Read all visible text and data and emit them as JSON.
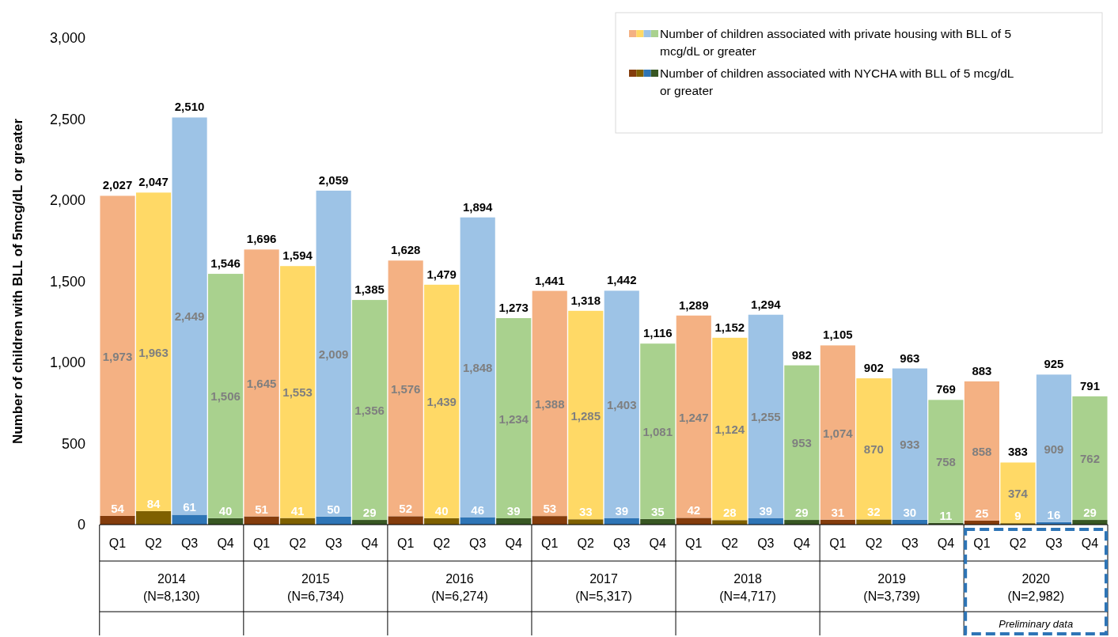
{
  "chart_data": {
    "type": "bar",
    "stacked": true,
    "ylabel": "Number of children with BLL of 5mcg/dL or greater",
    "categories": [
      "Q1",
      "Q2",
      "Q3",
      "Q4",
      "Q1",
      "Q2",
      "Q3",
      "Q4",
      "Q1",
      "Q2",
      "Q3",
      "Q4",
      "Q1",
      "Q2",
      "Q3",
      "Q4",
      "Q1",
      "Q2",
      "Q3",
      "Q4",
      "Q1",
      "Q2",
      "Q3",
      "Q4",
      "Q1",
      "Q2",
      "Q3",
      "Q4"
    ],
    "series": [
      {
        "name": "Number of children associated with NYCHA with BLL of 5 mcg/dL or greater",
        "value_labels": [
          "54",
          "84",
          "61",
          "40",
          "51",
          "41",
          "50",
          "29",
          "52",
          "40",
          "46",
          "39",
          "53",
          "33",
          "39",
          "35",
          "42",
          "28",
          "39",
          "29",
          "31",
          "32",
          "30",
          "11",
          "25",
          "9",
          "16",
          "29"
        ],
        "colors": [
          "#843c0c",
          "#7f6000",
          "#2e75b6",
          "#385723",
          "#843c0c",
          "#7f6000",
          "#2e75b6",
          "#385723",
          "#843c0c",
          "#7f6000",
          "#2e75b6",
          "#385723",
          "#843c0c",
          "#7f6000",
          "#2e75b6",
          "#385723",
          "#843c0c",
          "#7f6000",
          "#2e75b6",
          "#385723",
          "#843c0c",
          "#7f6000",
          "#2e75b6",
          "#385723",
          "#843c0c",
          "#7f6000",
          "#2e75b6",
          "#385723"
        ],
        "values": [
          54,
          84,
          61,
          40,
          51,
          41,
          50,
          29,
          52,
          40,
          46,
          39,
          53,
          33,
          39,
          35,
          42,
          28,
          39,
          29,
          31,
          32,
          30,
          11,
          25,
          9,
          16,
          29
        ]
      },
      {
        "name": "Number of children associated with private housing with BLL of 5 mcg/dL or greater",
        "value_labels": [
          "1,973",
          "1,963",
          "2,449",
          "1,506",
          "1,645",
          "1,553",
          "2,009",
          "1,356",
          "1,576",
          "1,439",
          "1,848",
          "1,234",
          "1,388",
          "1,285",
          "1,403",
          "1,081",
          "1,247",
          "1,124",
          "1,255",
          "953",
          "1,074",
          "870",
          "933",
          "758",
          "858",
          "374",
          "909",
          "762"
        ],
        "colors": [
          "#f4b183",
          "#ffd966",
          "#9dc3e6",
          "#a9d18e",
          "#f4b183",
          "#ffd966",
          "#9dc3e6",
          "#a9d18e",
          "#f4b183",
          "#ffd966",
          "#9dc3e6",
          "#a9d18e",
          "#f4b183",
          "#ffd966",
          "#9dc3e6",
          "#a9d18e",
          "#f4b183",
          "#ffd966",
          "#9dc3e6",
          "#a9d18e",
          "#f4b183",
          "#ffd966",
          "#9dc3e6",
          "#a9d18e",
          "#f4b183",
          "#ffd966",
          "#9dc3e6",
          "#a9d18e"
        ],
        "values": [
          1973,
          1963,
          2449,
          1506,
          1645,
          1553,
          2009,
          1356,
          1576,
          1439,
          1848,
          1234,
          1388,
          1285,
          1403,
          1081,
          1247,
          1124,
          1255,
          953,
          1074,
          870,
          933,
          758,
          858,
          374,
          909,
          762
        ]
      }
    ],
    "totals": [
      "2,027",
      "2,047",
      "2,510",
      "1,546",
      "1,696",
      "1,594",
      "2,059",
      "1,385",
      "1,628",
      "1,479",
      "1,894",
      "1,273",
      "1,441",
      "1,318",
      "1,442",
      "1,116",
      "1,289",
      "1,152",
      "1,294",
      "982",
      "1,105",
      "902",
      "963",
      "769",
      "883",
      "383",
      "925",
      "791"
    ],
    "ylim": [
      0,
      3000
    ],
    "yticks": [
      {
        "value": 0,
        "label": "0"
      },
      {
        "value": 500,
        "label": "500"
      },
      {
        "value": 1000,
        "label": "1,000"
      },
      {
        "value": 1500,
        "label": "1,500"
      },
      {
        "value": 2000,
        "label": "2,000"
      },
      {
        "value": 2500,
        "label": "2,500"
      },
      {
        "value": 3000,
        "label": "3,000"
      }
    ],
    "grid": false,
    "legend": "top right",
    "annotations": [
      "2014\n(N=8,130)",
      "2015\n(N=6,734)",
      "2016\n(N=6,274)",
      "2017\n(N=5,317)",
      "2018\n(N=4,717)",
      "2019\n(N=3,739)",
      "2020\n(N=2,982)",
      "Preliminary data"
    ]
  }
}
